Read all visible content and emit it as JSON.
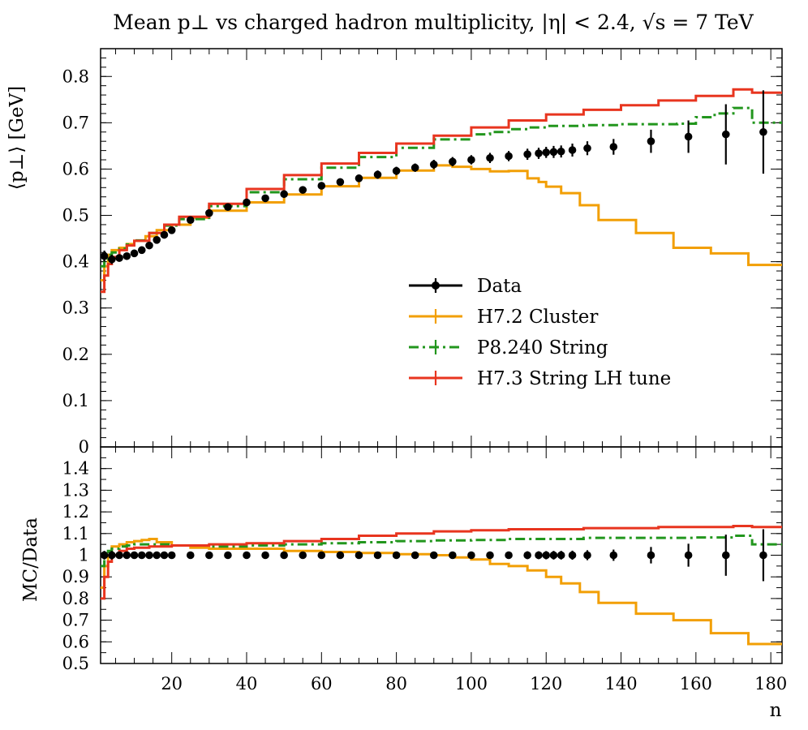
{
  "chart_data": [
    {
      "panel": "main",
      "type": "line",
      "title": "Mean p⊥ vs charged hadron multiplicity, |η| < 2.4, √s = 7 TeV",
      "ylabel": "⟨p⊥⟩ [GeV]",
      "xlabel": "",
      "xlim": [
        1,
        183
      ],
      "ylim": [
        0,
        0.86
      ],
      "xticks": [
        "20",
        "40",
        "60",
        "80",
        "100",
        "120",
        "140",
        "160",
        "180"
      ],
      "yticks": [
        "0",
        "0.1",
        "0.2",
        "0.3",
        "0.4",
        "0.5",
        "0.6",
        "0.7",
        "0.8"
      ],
      "legend_position": "center-right",
      "series": [
        {
          "name": "Data",
          "style": "points",
          "color": "#000000",
          "x": [
            2,
            4,
            6,
            8,
            10,
            12,
            14,
            16,
            18,
            20,
            25,
            30,
            35,
            40,
            45,
            50,
            55,
            60,
            65,
            70,
            75,
            80,
            85,
            90,
            95,
            100,
            105,
            110,
            115,
            118,
            120,
            122,
            124,
            127,
            131,
            138,
            148,
            158,
            168,
            178
          ],
          "values": [
            0.412,
            0.405,
            0.408,
            0.412,
            0.418,
            0.425,
            0.435,
            0.447,
            0.458,
            0.468,
            0.49,
            0.505,
            0.518,
            0.528,
            0.537,
            0.546,
            0.555,
            0.564,
            0.572,
            0.58,
            0.588,
            0.596,
            0.603,
            0.61,
            0.616,
            0.62,
            0.624,
            0.628,
            0.632,
            0.634,
            0.636,
            0.637,
            0.638,
            0.641,
            0.645,
            0.648,
            0.66,
            0.67,
            0.675,
            0.68
          ],
          "errors": [
            0.012,
            0.01,
            0.008,
            0.007,
            0.007,
            0.007,
            0.007,
            0.007,
            0.007,
            0.007,
            0.007,
            0.007,
            0.007,
            0.007,
            0.007,
            0.008,
            0.008,
            0.008,
            0.008,
            0.008,
            0.009,
            0.009,
            0.009,
            0.01,
            0.01,
            0.01,
            0.011,
            0.011,
            0.012,
            0.012,
            0.012,
            0.013,
            0.013,
            0.014,
            0.015,
            0.017,
            0.025,
            0.035,
            0.065,
            0.09
          ]
        },
        {
          "name": "H7.2 Cluster",
          "style": "step",
          "color": "#f29f05",
          "x": [
            1,
            2,
            3,
            4,
            6,
            8,
            10,
            13,
            16,
            20,
            25,
            30,
            40,
            50,
            60,
            70,
            80,
            90,
            95,
            100,
            105,
            110,
            115,
            118,
            120,
            124,
            129,
            134,
            144,
            154,
            164,
            174,
            183
          ],
          "values": [
            0.36,
            0.39,
            0.415,
            0.425,
            0.43,
            0.438,
            0.445,
            0.455,
            0.468,
            0.48,
            0.495,
            0.51,
            0.528,
            0.545,
            0.563,
            0.581,
            0.597,
            0.608,
            0.605,
            0.6,
            0.595,
            0.596,
            0.58,
            0.572,
            0.562,
            0.548,
            0.522,
            0.49,
            0.462,
            0.43,
            0.418,
            0.393,
            0.393
          ]
        },
        {
          "name": "P8.240 String",
          "style": "dashdot",
          "color": "#22961d",
          "x": [
            1,
            2,
            3,
            4,
            6,
            8,
            10,
            14,
            18,
            22,
            30,
            40,
            50,
            60,
            70,
            80,
            90,
            100,
            105,
            110,
            115,
            120,
            130,
            140,
            155,
            160,
            165,
            170,
            175,
            183
          ],
          "values": [
            0.39,
            0.405,
            0.415,
            0.42,
            0.428,
            0.437,
            0.446,
            0.462,
            0.478,
            0.492,
            0.52,
            0.55,
            0.578,
            0.603,
            0.626,
            0.646,
            0.664,
            0.675,
            0.68,
            0.686,
            0.69,
            0.693,
            0.695,
            0.697,
            0.698,
            0.712,
            0.72,
            0.732,
            0.7,
            0.7
          ]
        },
        {
          "name": "H7.3 String LH tune",
          "style": "step",
          "color": "#e8351f",
          "x": [
            1,
            2,
            3,
            4,
            6,
            8,
            10,
            14,
            18,
            22,
            30,
            40,
            50,
            60,
            70,
            80,
            90,
            100,
            110,
            120,
            130,
            140,
            150,
            160,
            170,
            175,
            183
          ],
          "values": [
            0.335,
            0.37,
            0.395,
            0.41,
            0.425,
            0.435,
            0.445,
            0.462,
            0.48,
            0.497,
            0.525,
            0.557,
            0.587,
            0.612,
            0.635,
            0.655,
            0.672,
            0.69,
            0.705,
            0.718,
            0.728,
            0.738,
            0.748,
            0.758,
            0.772,
            0.765,
            0.765
          ]
        }
      ]
    },
    {
      "panel": "ratio",
      "type": "line",
      "ylabel": "MC/Data",
      "xlabel": "n",
      "xlim": [
        1,
        183
      ],
      "ylim": [
        0.5,
        1.5
      ],
      "yticks": [
        "0.5",
        "0.6",
        "0.7",
        "0.8",
        "0.9",
        "1",
        "1.1",
        "1.2",
        "1.3",
        "1.4"
      ],
      "series": [
        {
          "name": "Data",
          "style": "points",
          "color": "#000000",
          "x": [
            2,
            4,
            6,
            8,
            10,
            12,
            14,
            16,
            18,
            20,
            25,
            30,
            35,
            40,
            45,
            50,
            55,
            60,
            65,
            70,
            75,
            80,
            85,
            90,
            95,
            100,
            105,
            110,
            115,
            118,
            120,
            122,
            124,
            127,
            131,
            138,
            148,
            158,
            168,
            178
          ],
          "values": [
            1,
            1,
            1,
            1,
            1,
            1,
            1,
            1,
            1,
            1,
            1,
            1,
            1,
            1,
            1,
            1,
            1,
            1,
            1,
            1,
            1,
            1,
            1,
            1,
            1,
            1,
            1,
            1,
            1,
            1,
            1,
            1,
            1,
            1,
            1,
            1,
            1,
            1,
            1,
            1
          ],
          "errors": [
            0.02,
            0.02,
            0.015,
            0.015,
            0.015,
            0.015,
            0.015,
            0.015,
            0.015,
            0.015,
            0.015,
            0.015,
            0.015,
            0.015,
            0.015,
            0.015,
            0.015,
            0.015,
            0.015,
            0.015,
            0.015,
            0.015,
            0.015,
            0.015,
            0.015,
            0.015,
            0.017,
            0.017,
            0.018,
            0.018,
            0.019,
            0.02,
            0.02,
            0.021,
            0.023,
            0.026,
            0.038,
            0.053,
            0.095,
            0.12
          ]
        },
        {
          "name": "H7.2 Cluster",
          "style": "step",
          "color": "#f29f05",
          "x": [
            1,
            2,
            3,
            4,
            6,
            8,
            10,
            12,
            14,
            16,
            20,
            25,
            30,
            40,
            50,
            60,
            70,
            80,
            90,
            95,
            100,
            105,
            110,
            115,
            120,
            124,
            129,
            134,
            144,
            154,
            164,
            174,
            183
          ],
          "values": [
            0.85,
            0.95,
            1.0,
            1.04,
            1.05,
            1.06,
            1.065,
            1.07,
            1.075,
            1.06,
            1.045,
            1.035,
            1.03,
            1.03,
            1.02,
            1.015,
            1.01,
            1.005,
            1.0,
            0.99,
            0.98,
            0.96,
            0.95,
            0.93,
            0.9,
            0.87,
            0.83,
            0.78,
            0.73,
            0.7,
            0.64,
            0.59,
            0.59
          ]
        },
        {
          "name": "P8.240 String",
          "style": "dashdot",
          "color": "#22961d",
          "x": [
            1,
            2,
            3,
            4,
            6,
            8,
            10,
            14,
            20,
            30,
            40,
            50,
            60,
            70,
            80,
            90,
            100,
            110,
            120,
            130,
            140,
            150,
            160,
            170,
            175,
            183
          ],
          "values": [
            0.95,
            1.0,
            1.02,
            1.03,
            1.04,
            1.045,
            1.05,
            1.05,
            1.045,
            1.04,
            1.045,
            1.05,
            1.055,
            1.06,
            1.065,
            1.068,
            1.07,
            1.075,
            1.075,
            1.08,
            1.08,
            1.08,
            1.082,
            1.09,
            1.05,
            1.05
          ]
        },
        {
          "name": "H7.3 String LH tune",
          "style": "step",
          "color": "#e8351f",
          "x": [
            1,
            2,
            3,
            4,
            6,
            8,
            10,
            14,
            20,
            30,
            40,
            50,
            60,
            70,
            80,
            90,
            100,
            110,
            120,
            130,
            140,
            150,
            160,
            170,
            175,
            183
          ],
          "values": [
            0.8,
            0.9,
            0.97,
            1.0,
            1.02,
            1.03,
            1.035,
            1.04,
            1.045,
            1.05,
            1.055,
            1.065,
            1.075,
            1.09,
            1.1,
            1.11,
            1.115,
            1.12,
            1.12,
            1.125,
            1.125,
            1.13,
            1.13,
            1.135,
            1.13,
            1.13
          ]
        }
      ]
    }
  ]
}
